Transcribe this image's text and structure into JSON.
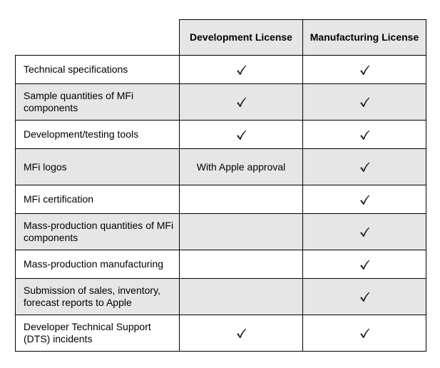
{
  "table": {
    "headers": {
      "feature": "",
      "development": "Development License",
      "manufacturing": "Manufacturing License"
    },
    "rows": [
      {
        "feature": "Technical specifications",
        "development": {
          "kind": "check"
        },
        "manufacturing": {
          "kind": "check"
        }
      },
      {
        "feature": "Sample quantities of MFi components",
        "development": {
          "kind": "check"
        },
        "manufacturing": {
          "kind": "check"
        }
      },
      {
        "feature": "Development/testing tools",
        "development": {
          "kind": "check"
        },
        "manufacturing": {
          "kind": "check"
        }
      },
      {
        "feature": "MFi logos",
        "development": {
          "kind": "text",
          "text": "With Apple approval"
        },
        "manufacturing": {
          "kind": "check"
        }
      },
      {
        "feature": "MFi certification",
        "development": {
          "kind": "empty"
        },
        "manufacturing": {
          "kind": "check"
        }
      },
      {
        "feature": "Mass-production quantities of MFi components",
        "development": {
          "kind": "empty"
        },
        "manufacturing": {
          "kind": "check"
        }
      },
      {
        "feature": "Mass-production manufacturing",
        "development": {
          "kind": "empty"
        },
        "manufacturing": {
          "kind": "check"
        }
      },
      {
        "feature": "Submission of sales, inventory, forecast reports to Apple",
        "development": {
          "kind": "empty"
        },
        "manufacturing": {
          "kind": "check"
        }
      },
      {
        "feature": "Developer Technical Support (DTS) incidents",
        "development": {
          "kind": "check"
        },
        "manufacturing": {
          "kind": "check"
        }
      }
    ]
  },
  "icons": {
    "check": "checkmark-icon"
  },
  "colors": {
    "shaded_row": "#e6e6e6",
    "plain_row": "#ffffff",
    "border": "#000000"
  }
}
